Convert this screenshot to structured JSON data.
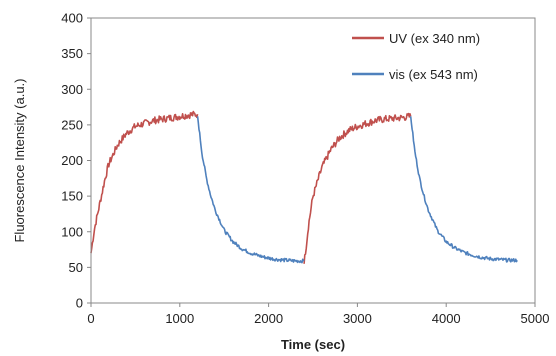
{
  "chart_data": {
    "type": "line",
    "title": "",
    "xlabel": "Time (sec)",
    "ylabel": "Fluorescence Intensity  (a.u.)",
    "xlim": [
      0,
      5000
    ],
    "ylim": [
      0,
      400
    ],
    "xticks": [
      0,
      1000,
      2000,
      3000,
      4000,
      5000
    ],
    "yticks": [
      0,
      50,
      100,
      150,
      200,
      250,
      300,
      350,
      400
    ],
    "grid": false,
    "legend_placement": "top-right",
    "series": [
      {
        "name": "UV (ex 340 nm)",
        "color": "#c0504d",
        "segments": [
          {
            "x": [
              0,
              40,
              100,
              150,
              200,
              300,
              400,
              500,
              600,
              700,
              800,
              900,
              1000,
              1100,
              1200
            ],
            "y": [
              70,
              105,
              140,
              170,
              195,
              222,
              238,
              248,
              252,
              256,
              258,
              260,
              262,
              264,
              265
            ]
          },
          {
            "x": [
              2400,
              2450,
              2500,
              2600,
              2700,
              2800,
              2900,
              3000,
              3100,
              3200,
              3300,
              3400,
              3500,
              3600
            ],
            "y": [
              55,
              110,
              150,
              190,
              215,
              232,
              242,
              248,
              252,
              256,
              258,
              259,
              260,
              262
            ]
          }
        ]
      },
      {
        "name": "vis (ex 543 nm)",
        "color": "#4f81bd",
        "segments": [
          {
            "x": [
              1200,
              1250,
              1300,
              1350,
              1400,
              1500,
              1600,
              1700,
              1800,
              1900,
              2000,
              2100,
              2200,
              2300,
              2400
            ],
            "y": [
              262,
              210,
              175,
              150,
              130,
              102,
              86,
              76,
              70,
              66,
              63,
              61,
              60,
              59,
              59
            ]
          },
          {
            "x": [
              3600,
              3650,
              3700,
              3750,
              3800,
              3900,
              4000,
              4100,
              4200,
              4300,
              4400,
              4500,
              4600,
              4700,
              4800
            ],
            "y": [
              262,
              210,
              175,
              150,
              130,
              102,
              86,
              77,
              71,
              67,
              64,
              62,
              61,
              60,
              60
            ]
          }
        ]
      }
    ]
  }
}
